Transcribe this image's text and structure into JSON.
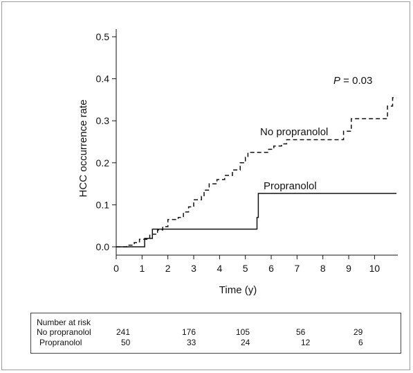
{
  "chart_data": {
    "type": "line",
    "title": "",
    "xlabel": "Time (y)",
    "ylabel": "HCC occurrence rate",
    "xlim": [
      0,
      10.9
    ],
    "ylim": [
      0,
      0.5
    ],
    "x_ticks": [
      0,
      1,
      2,
      3,
      4,
      5,
      6,
      7,
      8,
      9,
      10
    ],
    "y_ticks": [
      0.0,
      0.1,
      0.2,
      0.3,
      0.4,
      0.5
    ],
    "y_tick_labels": [
      "0.0",
      "0.1",
      "0.2",
      "0.3",
      "0.4",
      "0.5"
    ],
    "grid": false,
    "annotation": {
      "prefix": "P",
      "text": " = 0.03"
    },
    "series": [
      {
        "name": "No propranolol",
        "style": "dashed",
        "color": "#111111",
        "points": [
          [
            0,
            0
          ],
          [
            0.4,
            0.004
          ],
          [
            0.7,
            0.01
          ],
          [
            0.9,
            0.018
          ],
          [
            1.3,
            0.03
          ],
          [
            1.6,
            0.04
          ],
          [
            1.8,
            0.048
          ],
          [
            2.0,
            0.065
          ],
          [
            2.4,
            0.07
          ],
          [
            2.6,
            0.083
          ],
          [
            2.8,
            0.095
          ],
          [
            3.0,
            0.112
          ],
          [
            3.3,
            0.12
          ],
          [
            3.4,
            0.135
          ],
          [
            3.6,
            0.15
          ],
          [
            3.9,
            0.16
          ],
          [
            4.2,
            0.17
          ],
          [
            4.5,
            0.183
          ],
          [
            4.8,
            0.2
          ],
          [
            5.0,
            0.213
          ],
          [
            5.1,
            0.225
          ],
          [
            5.6,
            0.225
          ],
          [
            5.9,
            0.232
          ],
          [
            6.1,
            0.24
          ],
          [
            6.4,
            0.245
          ],
          [
            6.6,
            0.255
          ],
          [
            8.6,
            0.255
          ],
          [
            8.8,
            0.275
          ],
          [
            9.1,
            0.305
          ],
          [
            9.6,
            0.305
          ],
          [
            10.2,
            0.305
          ],
          [
            10.5,
            0.335
          ],
          [
            10.7,
            0.355
          ],
          [
            10.85,
            0.355
          ]
        ]
      },
      {
        "name": "Propranolol",
        "style": "solid",
        "color": "#111111",
        "points": [
          [
            0,
            0
          ],
          [
            1.0,
            0
          ],
          [
            1.1,
            0.02
          ],
          [
            1.4,
            0.02
          ],
          [
            1.4,
            0.042
          ],
          [
            5.4,
            0.042
          ],
          [
            5.45,
            0.07
          ],
          [
            5.5,
            0.07
          ],
          [
            5.5,
            0.127
          ],
          [
            10.85,
            0.127
          ]
        ]
      }
    ]
  },
  "risk_table": {
    "heading": "Number at risk",
    "rows": [
      {
        "label": "No propranolol",
        "values": [
          "241",
          "176",
          "105",
          "56",
          "29"
        ]
      },
      {
        "label": "Propranolol",
        "values": [
          "50",
          "33",
          "24",
          "12",
          "6"
        ]
      }
    ]
  }
}
